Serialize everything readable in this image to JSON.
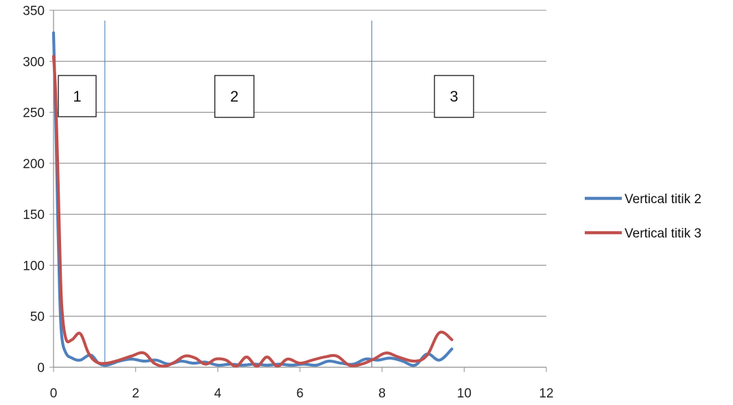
{
  "chart_data": {
    "type": "line",
    "title": "",
    "xlabel": "",
    "ylabel": "",
    "xlim": [
      0,
      12
    ],
    "ylim": [
      0,
      350
    ],
    "x_ticks": [
      0,
      2,
      4,
      6,
      8,
      10,
      12
    ],
    "y_ticks": [
      0,
      50,
      100,
      150,
      200,
      250,
      300,
      350
    ],
    "grid": "horizontal",
    "legend_position": "right",
    "series": [
      {
        "name": "Vertical titik 2",
        "color": "#4f81bd",
        "x": [
          0.0,
          0.05,
          0.1,
          0.15,
          0.2,
          0.3,
          0.45,
          0.65,
          0.9,
          1.1,
          1.3,
          1.6,
          1.9,
          2.2,
          2.5,
          2.8,
          3.1,
          3.4,
          3.7,
          4.0,
          4.3,
          4.6,
          4.9,
          5.2,
          5.5,
          5.8,
          6.1,
          6.4,
          6.7,
          7.0,
          7.3,
          7.6,
          7.9,
          8.2,
          8.5,
          8.8,
          9.1,
          9.4,
          9.7
        ],
        "y": [
          328,
          250,
          150,
          70,
          30,
          14,
          9,
          7,
          12,
          4,
          2,
          6,
          8,
          6,
          7,
          3,
          6,
          4,
          5,
          2,
          3,
          2,
          3,
          2,
          3,
          2,
          3,
          2,
          6,
          4,
          3,
          8,
          7,
          9,
          6,
          2,
          13,
          7,
          18
        ]
      },
      {
        "name": "Vertical titik 3",
        "color": "#c0504d",
        "x": [
          0.0,
          0.05,
          0.1,
          0.15,
          0.2,
          0.3,
          0.45,
          0.65,
          0.85,
          1.05,
          1.3,
          1.6,
          1.9,
          2.2,
          2.45,
          2.7,
          2.95,
          3.2,
          3.45,
          3.7,
          3.95,
          4.2,
          4.45,
          4.7,
          4.95,
          5.2,
          5.45,
          5.7,
          6.0,
          6.3,
          6.6,
          6.9,
          7.2,
          7.5,
          7.8,
          8.1,
          8.4,
          8.8,
          9.1,
          9.4,
          9.7
        ],
        "y": [
          305,
          270,
          200,
          120,
          60,
          28,
          27,
          33,
          14,
          5,
          4,
          7,
          11,
          14,
          4,
          1,
          5,
          11,
          9,
          3,
          8,
          7,
          1,
          10,
          1,
          10,
          1,
          8,
          4,
          7,
          10,
          11,
          2,
          3,
          8,
          14,
          10,
          6,
          12,
          34,
          27
        ]
      }
    ],
    "vertical_lines": [
      1.25,
      7.75
    ],
    "region_labels": [
      "1",
      "2",
      "3"
    ]
  }
}
